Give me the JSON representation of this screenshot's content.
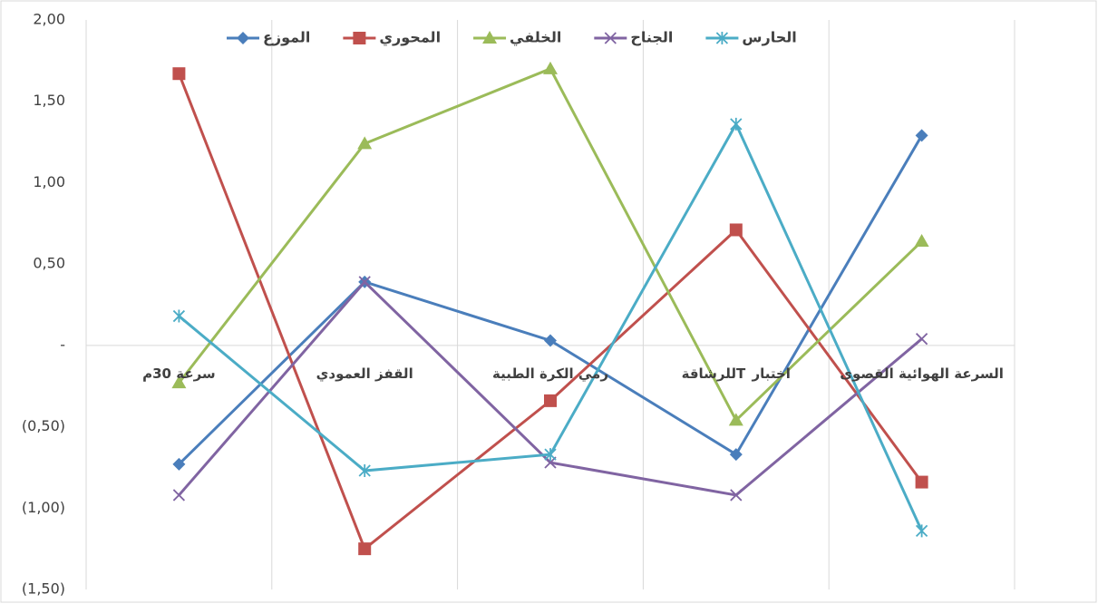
{
  "chart_data": {
    "type": "line",
    "categories": [
      "سرعة 30م",
      "القفز العمودي",
      "رمي الكرة الطبية",
      "اختبار Tللرشاقة",
      "السرعة الهوائية القصوى"
    ],
    "series": [
      {
        "name": "الموزع",
        "color": "#4a7ebb",
        "marker": "diamond",
        "values": [
          -0.73,
          0.39,
          0.03,
          -0.67,
          1.29
        ]
      },
      {
        "name": "المحوري",
        "color": "#c0504d",
        "marker": "square",
        "values": [
          1.67,
          -1.25,
          -0.34,
          0.71,
          -0.84
        ]
      },
      {
        "name": "الخلفي",
        "color": "#9bbb59",
        "marker": "triangle",
        "values": [
          -0.23,
          1.24,
          1.7,
          -0.46,
          0.64
        ]
      },
      {
        "name": "الجناح",
        "color": "#8064a2",
        "marker": "x",
        "values": [
          -0.92,
          0.39,
          -0.72,
          -0.92,
          0.04
        ]
      },
      {
        "name": "الحارس",
        "color": "#4bacc6",
        "marker": "star",
        "values": [
          0.18,
          -0.77,
          -0.67,
          1.36,
          -1.14
        ]
      }
    ],
    "ylim": [
      -1.5,
      2
    ],
    "yticks": [
      {
        "value": -1.5,
        "label": "(1,50)"
      },
      {
        "value": -1,
        "label": "(1,00)"
      },
      {
        "value": -0.5,
        "label": "(0,50)"
      },
      {
        "value": 0,
        "label": "-"
      },
      {
        "value": 0.5,
        "label": "0,50"
      },
      {
        "value": 1,
        "label": "1,00"
      },
      {
        "value": 1.5,
        "label": "1,50"
      },
      {
        "value": 2,
        "label": "2,00"
      }
    ],
    "grid": true,
    "legend": "top"
  }
}
